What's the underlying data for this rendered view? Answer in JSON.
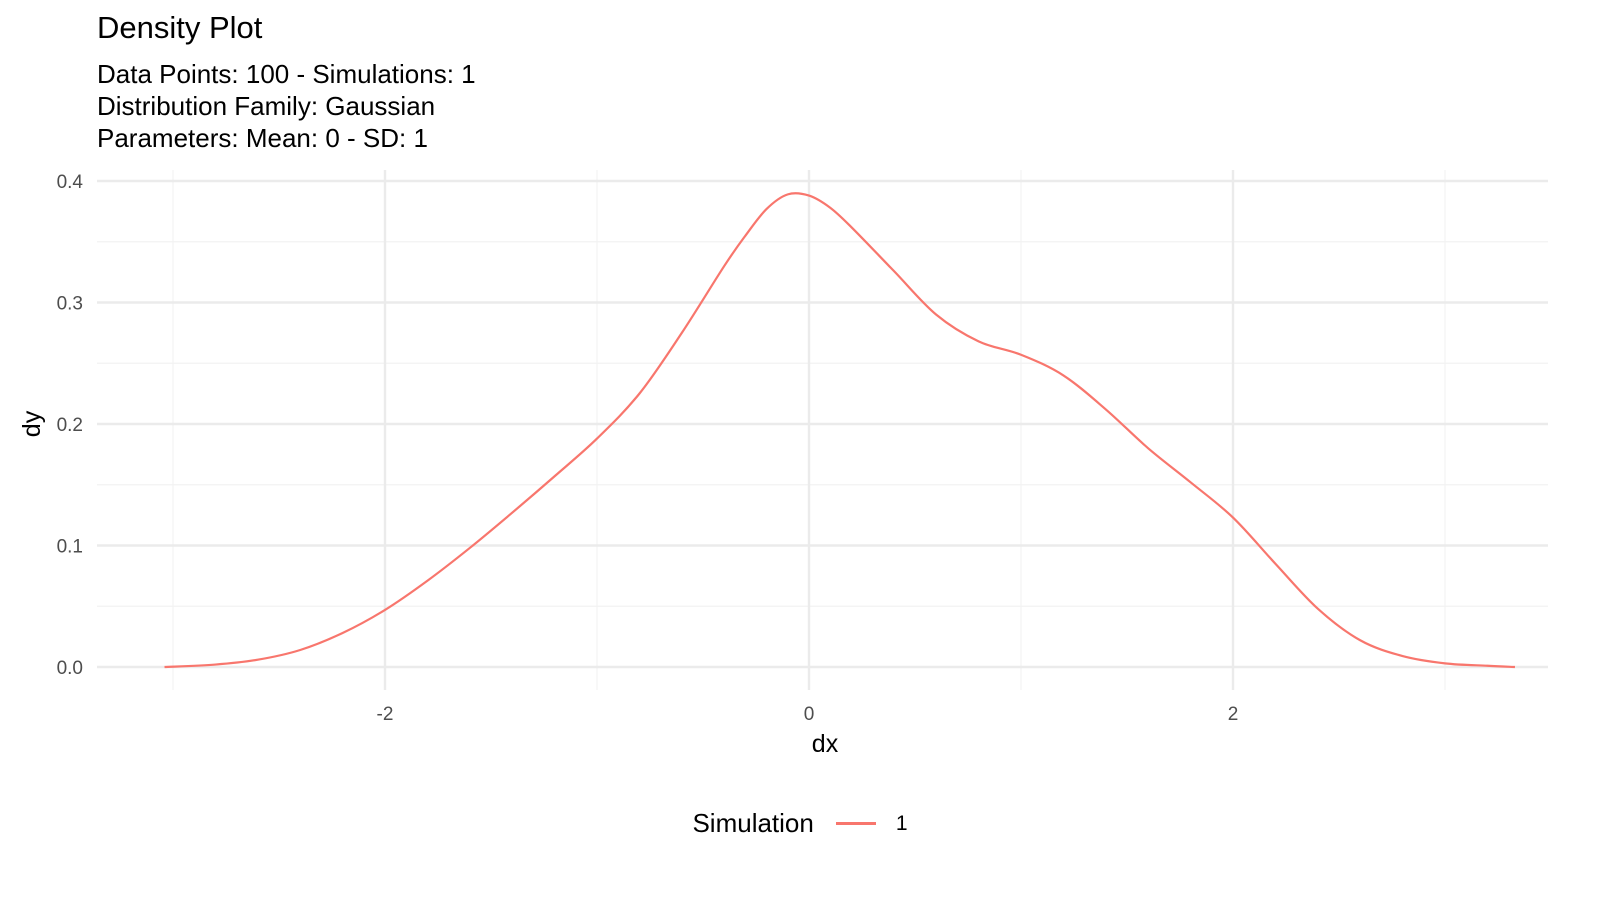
{
  "header": {
    "title": "Density Plot",
    "subtitle_lines": [
      "Data Points: 100 - Simulations: 1",
      "Distribution Family: Gaussian",
      "Parameters: Mean: 0 - SD: 1"
    ]
  },
  "legend": {
    "title": "Simulation",
    "items": [
      {
        "label": "1",
        "color": "#F8766D"
      }
    ]
  },
  "chart_data": {
    "type": "line",
    "title": "Density Plot",
    "subtitle": "Data Points: 100 - Simulations: 1 / Distribution Family: Gaussian / Parameters: Mean: 0 - SD: 1",
    "xlabel": "dx",
    "ylabel": "dy",
    "xlim": [
      -3.1,
      3.4
    ],
    "ylim": [
      0,
      0.4
    ],
    "x_ticks": [
      -2,
      0,
      2
    ],
    "x_tick_labels": [
      "-2",
      "0",
      "2"
    ],
    "y_ticks": [
      0.0,
      0.1,
      0.2,
      0.3,
      0.4
    ],
    "y_tick_labels": [
      "0.0",
      "0.1",
      "0.2",
      "0.3",
      "0.4"
    ],
    "grid": true,
    "legend_position": "bottom",
    "series": [
      {
        "name": "1",
        "color": "#F8766D",
        "x": [
          -3.04,
          -2.8,
          -2.6,
          -2.4,
          -2.2,
          -2.0,
          -1.8,
          -1.6,
          -1.4,
          -1.2,
          -1.0,
          -0.8,
          -0.6,
          -0.4,
          -0.3,
          -0.2,
          -0.1,
          0.0,
          0.1,
          0.2,
          0.4,
          0.6,
          0.8,
          1.0,
          1.2,
          1.4,
          1.6,
          1.8,
          2.0,
          2.2,
          2.4,
          2.6,
          2.8,
          3.0,
          3.2,
          3.33
        ],
        "y": [
          0.0,
          0.002,
          0.006,
          0.014,
          0.028,
          0.047,
          0.071,
          0.098,
          0.127,
          0.157,
          0.188,
          0.225,
          0.275,
          0.33,
          0.355,
          0.377,
          0.389,
          0.388,
          0.378,
          0.362,
          0.326,
          0.29,
          0.268,
          0.257,
          0.24,
          0.212,
          0.18,
          0.152,
          0.123,
          0.085,
          0.048,
          0.022,
          0.009,
          0.003,
          0.001,
          0.0
        ]
      }
    ]
  }
}
